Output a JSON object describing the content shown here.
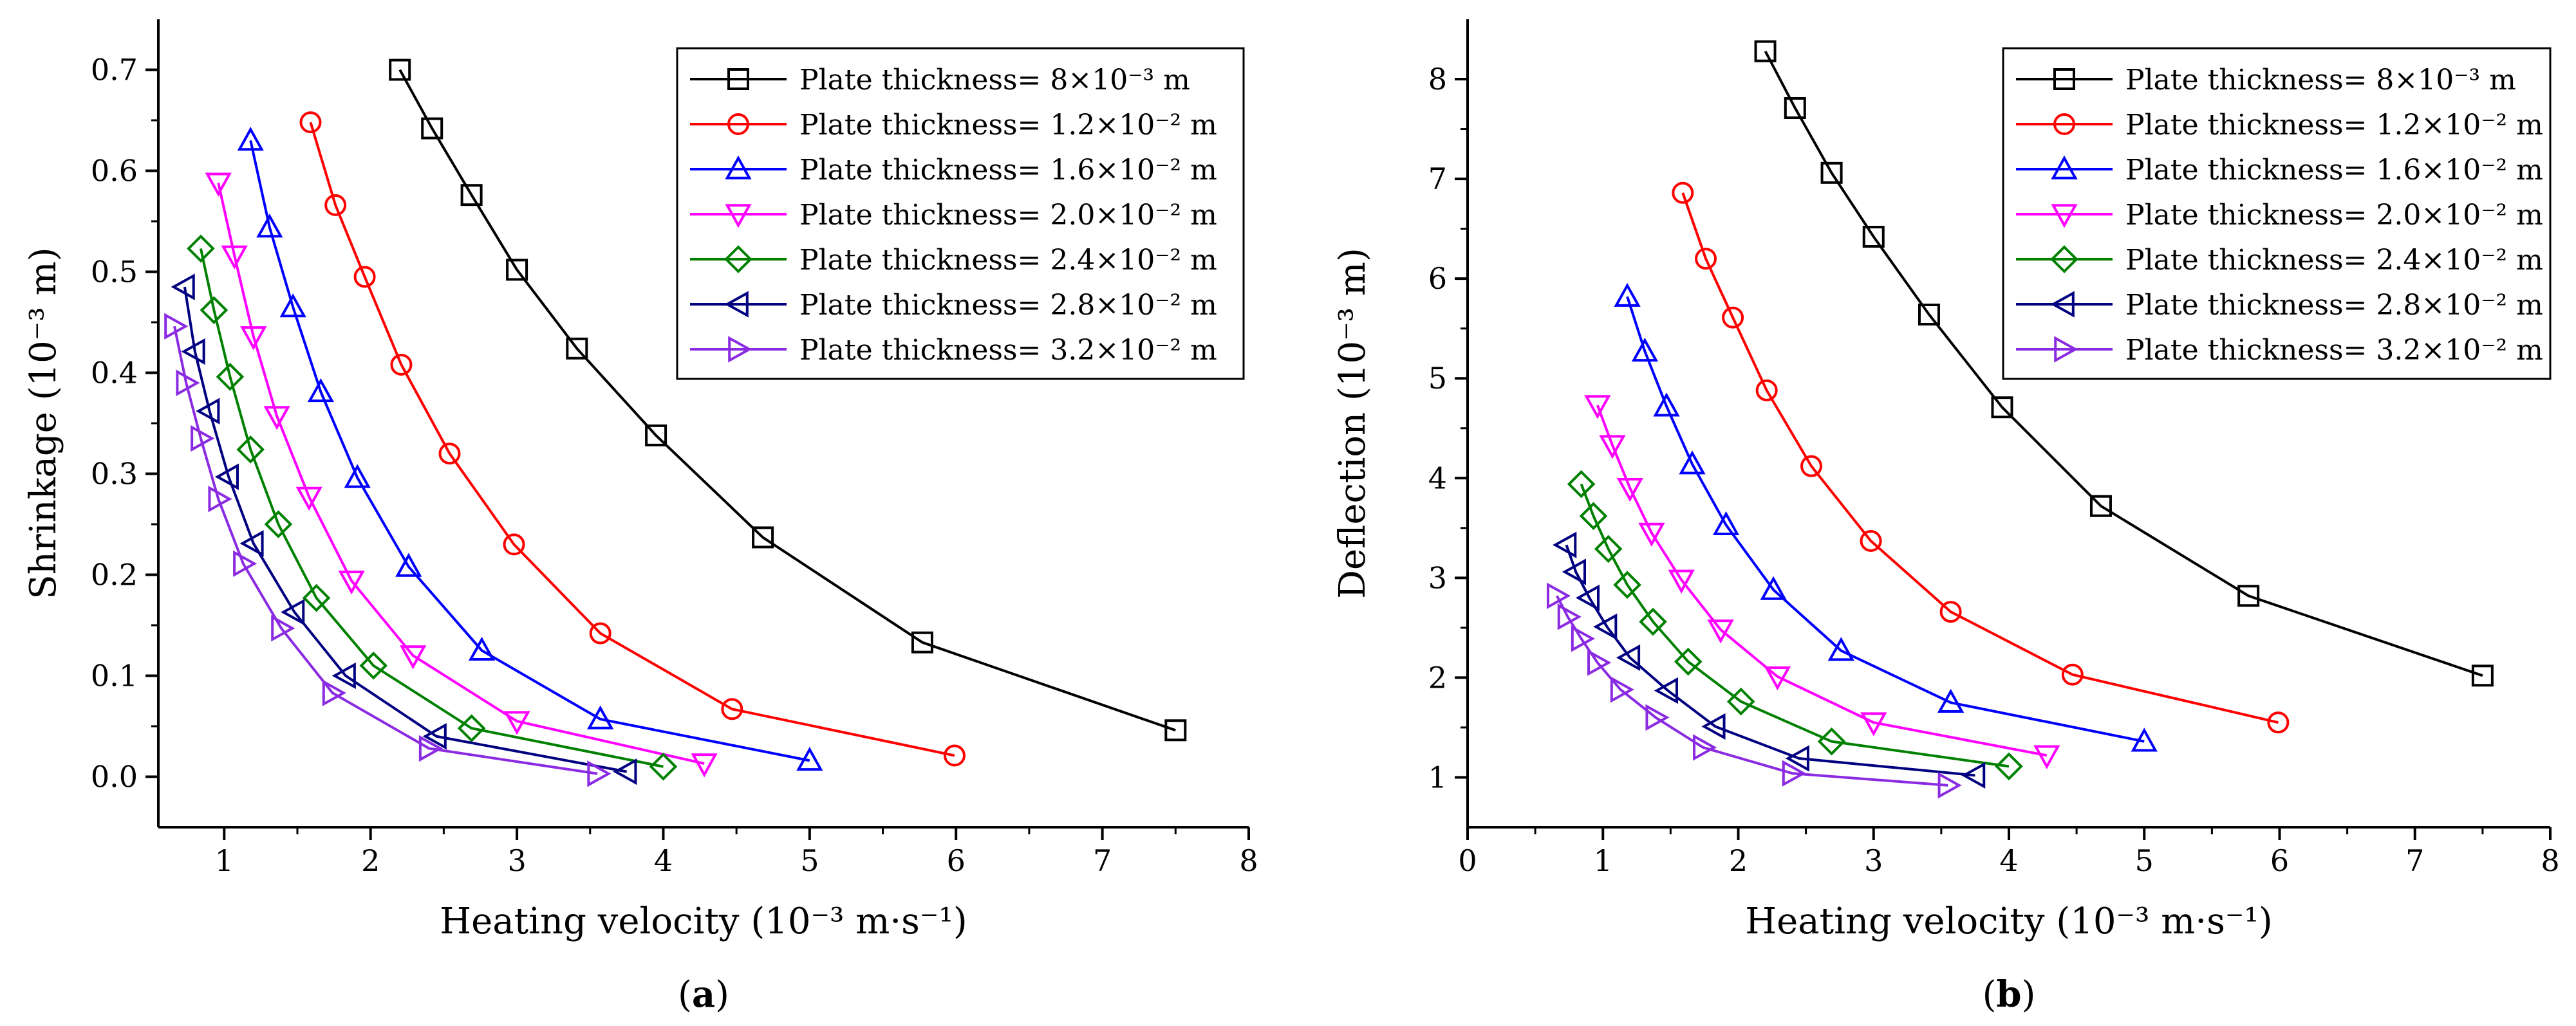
{
  "chart_data": [
    {
      "type": "line",
      "panel_label": "a",
      "title": "",
      "xlabel": "Heating velocity (10⁻³ m·s⁻¹)",
      "ylabel": "Shrinkage (10⁻³ m)",
      "xlim": [
        0.55,
        8
      ],
      "ylim": [
        -0.05,
        0.75
      ],
      "xticks": [
        1,
        2,
        3,
        4,
        5,
        6,
        7,
        8
      ],
      "xtick_labels": [
        "1",
        "2",
        "3",
        "4",
        "5",
        "6",
        "7",
        "8"
      ],
      "yticks": [
        0.0,
        0.1,
        0.2,
        0.3,
        0.4,
        0.5,
        0.6,
        0.7
      ],
      "ytick_labels": [
        "0.0",
        "0.1",
        "0.2",
        "0.3",
        "0.4",
        "0.5",
        "0.6",
        "0.7"
      ],
      "grid": false,
      "legend_position": "top-right",
      "series": [
        {
          "name": "Plate thickness= 8×10⁻³ m",
          "color": "#000000",
          "marker": "square",
          "x": [
            2.2,
            2.42,
            2.69,
            3.0,
            3.41,
            3.95,
            4.68,
            5.77,
            7.5
          ],
          "y": [
            0.7,
            0.642,
            0.576,
            0.502,
            0.424,
            0.338,
            0.237,
            0.133,
            0.046
          ]
        },
        {
          "name": "Plate thickness= 1.2×10⁻² m",
          "color": "#ff0000",
          "marker": "circle",
          "x": [
            1.59,
            1.76,
            1.96,
            2.21,
            2.54,
            2.98,
            3.57,
            4.47,
            5.99
          ],
          "y": [
            0.648,
            0.566,
            0.495,
            0.408,
            0.32,
            0.23,
            0.142,
            0.067,
            0.021
          ]
        },
        {
          "name": "Plate thickness= 1.6×10⁻² m",
          "color": "#0000ff",
          "marker": "triangle-up",
          "x": [
            1.18,
            1.31,
            1.47,
            1.66,
            1.91,
            2.26,
            2.76,
            3.57,
            5.0
          ],
          "y": [
            0.63,
            0.544,
            0.465,
            0.381,
            0.296,
            0.208,
            0.125,
            0.057,
            0.016
          ]
        },
        {
          "name": "Plate thickness= 2.0×10⁻² m",
          "color": "#ff00ff",
          "marker": "triangle-down",
          "x": [
            0.96,
            1.07,
            1.2,
            1.36,
            1.58,
            1.87,
            2.29,
            3.0,
            4.28
          ],
          "y": [
            0.588,
            0.516,
            0.436,
            0.357,
            0.277,
            0.194,
            0.12,
            0.055,
            0.013
          ]
        },
        {
          "name": "Plate thickness= 2.4×10⁻² m",
          "color": "#008000",
          "marker": "diamond",
          "x": [
            0.84,
            0.93,
            1.04,
            1.18,
            1.37,
            1.63,
            2.02,
            2.69,
            4.0
          ],
          "y": [
            0.523,
            0.462,
            0.396,
            0.324,
            0.25,
            0.177,
            0.11,
            0.048,
            0.01
          ]
        },
        {
          "name": "Plate thickness= 2.8×10⁻² m",
          "color": "#000080",
          "marker": "triangle-left",
          "x": [
            0.73,
            0.8,
            0.9,
            1.03,
            1.2,
            1.48,
            1.83,
            2.45,
            3.75
          ],
          "y": [
            0.485,
            0.421,
            0.362,
            0.297,
            0.231,
            0.163,
            0.1,
            0.04,
            0.005
          ]
        },
        {
          "name": "Plate thickness= 3.2×10⁻² m",
          "color": "#8a2be2",
          "marker": "triangle-right",
          "x": [
            0.66,
            0.74,
            0.84,
            0.96,
            1.13,
            1.39,
            1.74,
            2.4,
            3.55
          ],
          "y": [
            0.446,
            0.39,
            0.335,
            0.275,
            0.211,
            0.147,
            0.083,
            0.028,
            0.003
          ]
        }
      ]
    },
    {
      "type": "line",
      "panel_label": "b",
      "title": "",
      "xlabel": "Heating velocity (10⁻³ m·s⁻¹)",
      "ylabel": "Deflection (10⁻³ m)",
      "xlim": [
        0,
        8
      ],
      "ylim": [
        0.5,
        8.6
      ],
      "xticks": [
        0,
        1,
        2,
        3,
        4,
        5,
        6,
        7,
        8
      ],
      "xtick_labels": [
        "0",
        "1",
        "2",
        "3",
        "4",
        "5",
        "6",
        "7",
        "8"
      ],
      "yticks": [
        1,
        2,
        3,
        4,
        5,
        6,
        7,
        8
      ],
      "ytick_labels": [
        "1",
        "2",
        "3",
        "4",
        "5",
        "6",
        "7",
        "8"
      ],
      "grid": false,
      "legend_position": "top-right",
      "series": [
        {
          "name": "Plate thickness= 8×10⁻³ m",
          "color": "#000000",
          "marker": "square",
          "x": [
            2.2,
            2.42,
            2.69,
            3.0,
            3.41,
            3.95,
            4.68,
            5.77,
            7.5
          ],
          "y": [
            8.28,
            7.71,
            7.06,
            6.42,
            5.64,
            4.71,
            3.72,
            2.82,
            2.02
          ]
        },
        {
          "name": "Plate thickness= 1.2×10⁻² m",
          "color": "#ff0000",
          "marker": "circle",
          "x": [
            1.59,
            1.76,
            1.96,
            2.21,
            2.54,
            2.98,
            3.57,
            4.47,
            5.99
          ],
          "y": [
            6.86,
            6.2,
            5.61,
            4.88,
            4.12,
            3.37,
            2.66,
            2.03,
            1.55
          ]
        },
        {
          "name": "Plate thickness= 1.6×10⁻² m",
          "color": "#0000ff",
          "marker": "triangle-up",
          "x": [
            1.18,
            1.31,
            1.47,
            1.66,
            1.91,
            2.26,
            2.76,
            3.57,
            5.0
          ],
          "y": [
            5.82,
            5.27,
            4.72,
            4.14,
            3.53,
            2.88,
            2.27,
            1.75,
            1.36
          ]
        },
        {
          "name": "Plate thickness= 2.0×10⁻² m",
          "color": "#ff00ff",
          "marker": "triangle-down",
          "x": [
            0.96,
            1.07,
            1.2,
            1.36,
            1.58,
            1.87,
            2.29,
            3.0,
            4.28
          ],
          "y": [
            4.73,
            4.33,
            3.9,
            3.45,
            2.98,
            2.48,
            2.01,
            1.55,
            1.22
          ]
        },
        {
          "name": "Plate thickness= 2.4×10⁻² m",
          "color": "#008000",
          "marker": "diamond",
          "x": [
            0.84,
            0.93,
            1.04,
            1.18,
            1.37,
            1.63,
            2.02,
            2.69,
            4.0
          ],
          "y": [
            3.94,
            3.62,
            3.29,
            2.93,
            2.56,
            2.16,
            1.76,
            1.36,
            1.11
          ]
        },
        {
          "name": "Plate thickness= 2.8×10⁻² m",
          "color": "#000080",
          "marker": "triangle-left",
          "x": [
            0.73,
            0.8,
            0.9,
            1.03,
            1.2,
            1.48,
            1.83,
            2.45,
            3.75
          ],
          "y": [
            3.33,
            3.06,
            2.8,
            2.51,
            2.2,
            1.87,
            1.51,
            1.19,
            1.02
          ]
        },
        {
          "name": "Plate thickness= 3.2×10⁻² m",
          "color": "#8a2be2",
          "marker": "triangle-right",
          "x": [
            0.66,
            0.74,
            0.84,
            0.96,
            1.13,
            1.39,
            1.74,
            2.4,
            3.55
          ],
          "y": [
            2.82,
            2.61,
            2.39,
            2.15,
            1.88,
            1.6,
            1.3,
            1.04,
            0.92
          ]
        }
      ]
    }
  ]
}
